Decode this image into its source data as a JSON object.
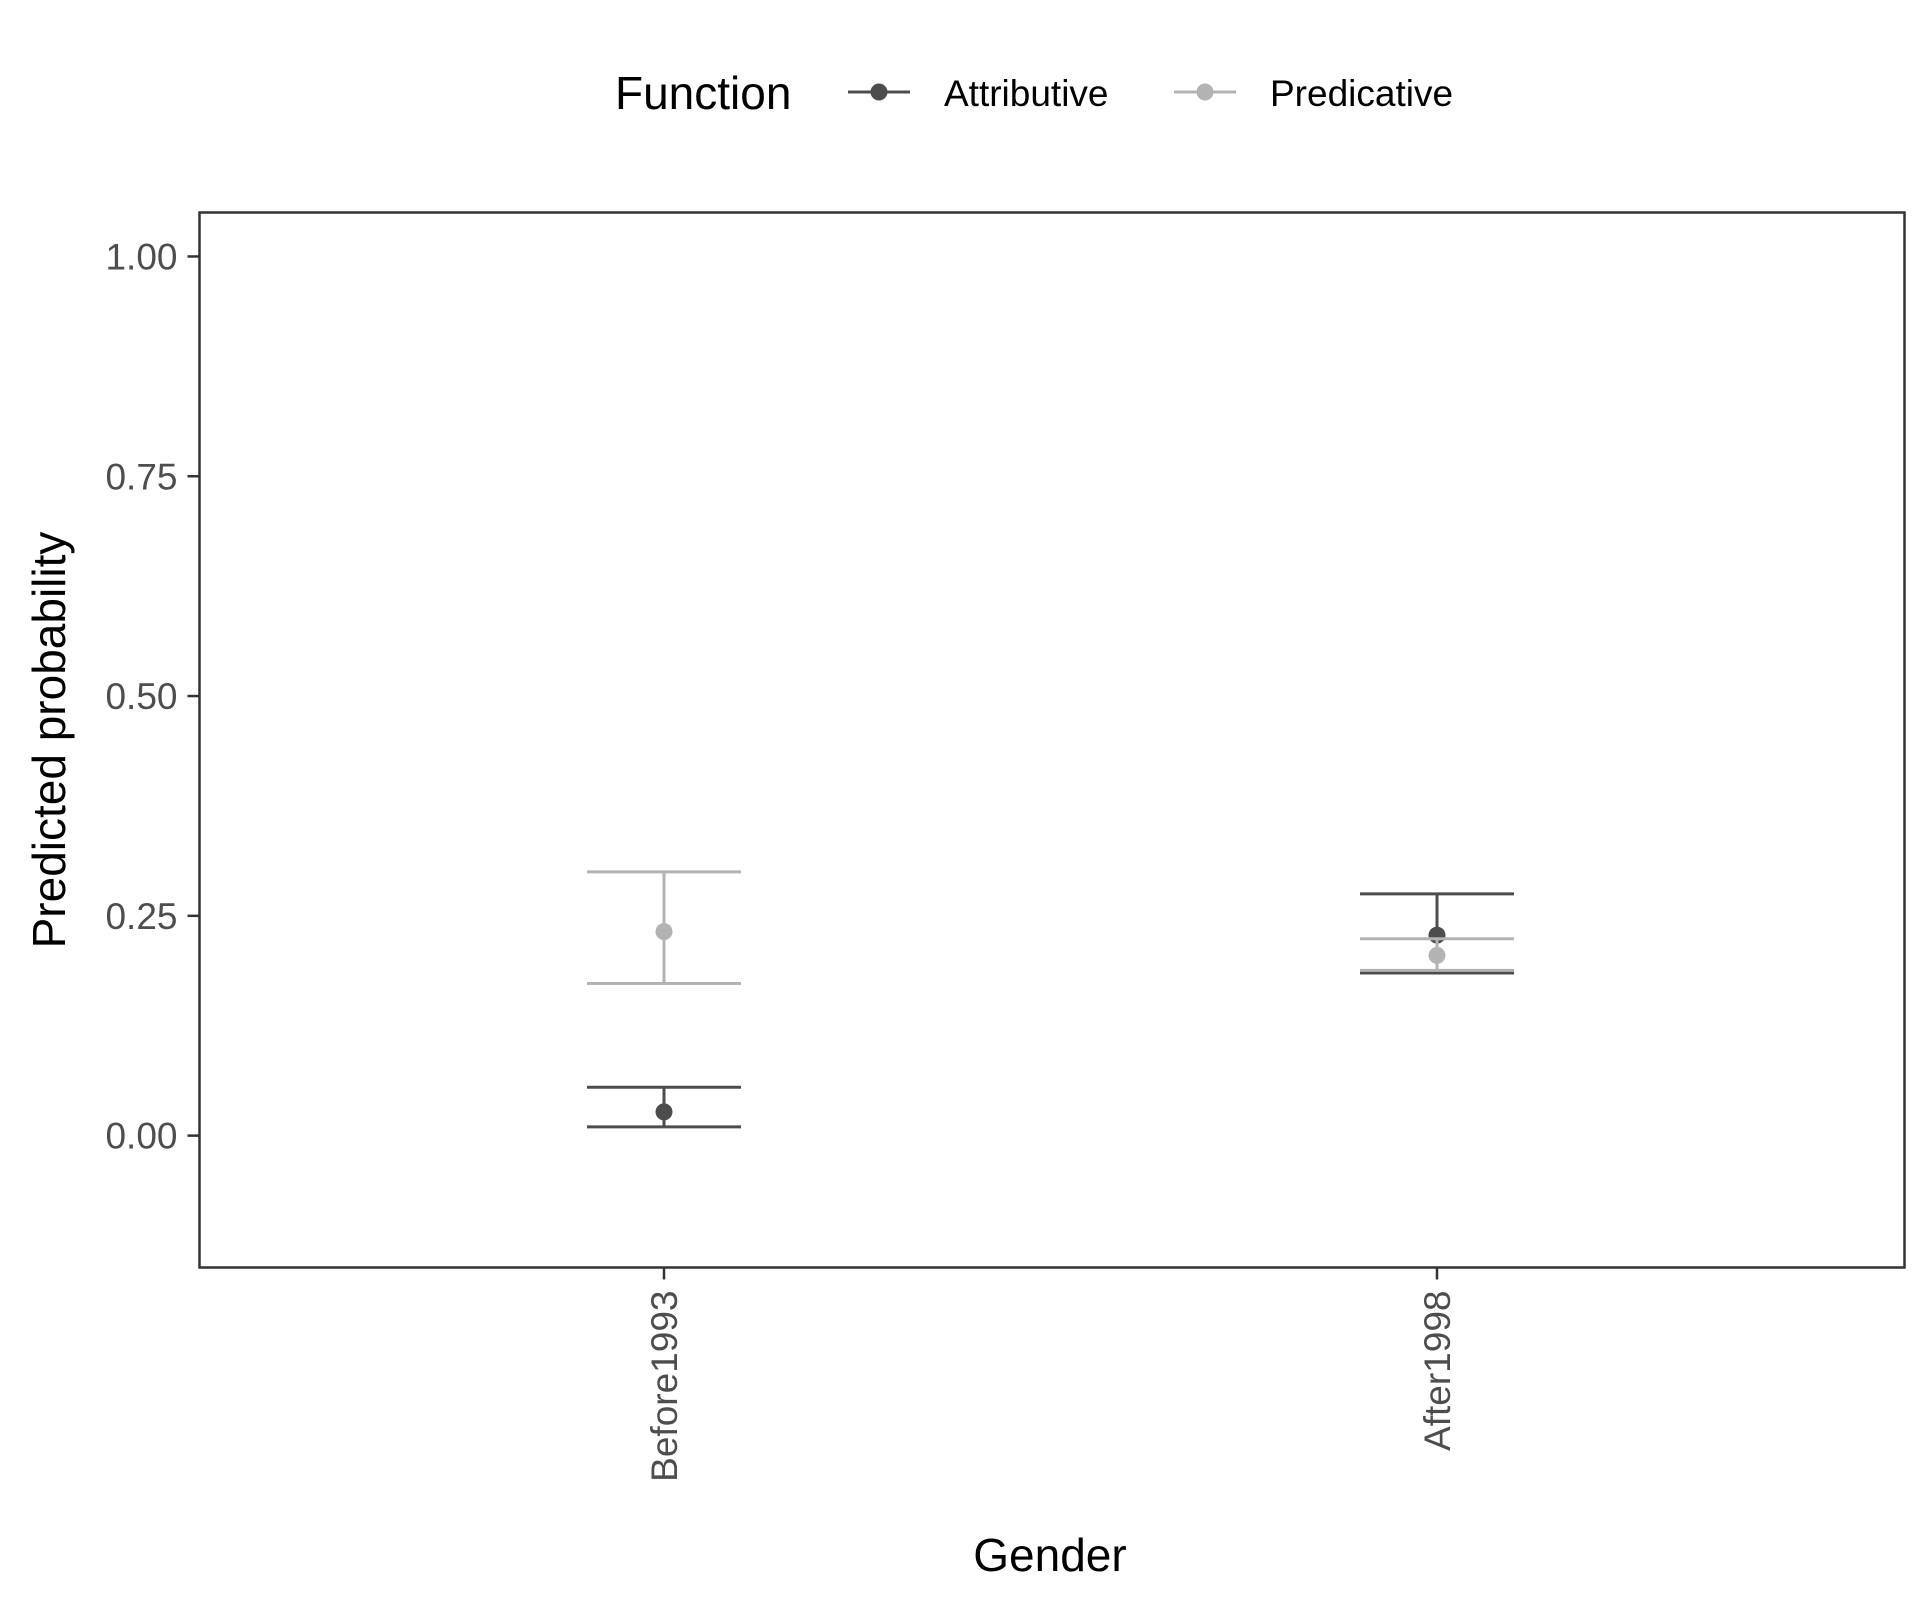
{
  "chart_data": {
    "type": "scatter",
    "xlabel": "Gender",
    "ylabel": "Predicted probability",
    "categories": [
      "Before1993",
      "After1998"
    ],
    "ylim": [
      -0.15,
      1.05
    ],
    "yticks": [
      0.0,
      0.25,
      0.5,
      0.75,
      1.0
    ],
    "ytick_labels": [
      "0.00",
      "0.25",
      "0.50",
      "0.75",
      "1.00"
    ],
    "grid": false,
    "legend": {
      "title": "Function",
      "placement": "top",
      "entries": [
        "Attributive",
        "Predicative"
      ]
    },
    "series": [
      {
        "name": "Attributive",
        "color": "#4d4d4d",
        "values": [
          0.027,
          0.228
        ],
        "lower": [
          0.01,
          0.185
        ],
        "upper": [
          0.055,
          0.275
        ]
      },
      {
        "name": "Predicative",
        "color": "#b3b3b3",
        "values": [
          0.232,
          0.205
        ],
        "lower": [
          0.173,
          0.188
        ],
        "upper": [
          0.3,
          0.224
        ]
      }
    ]
  }
}
